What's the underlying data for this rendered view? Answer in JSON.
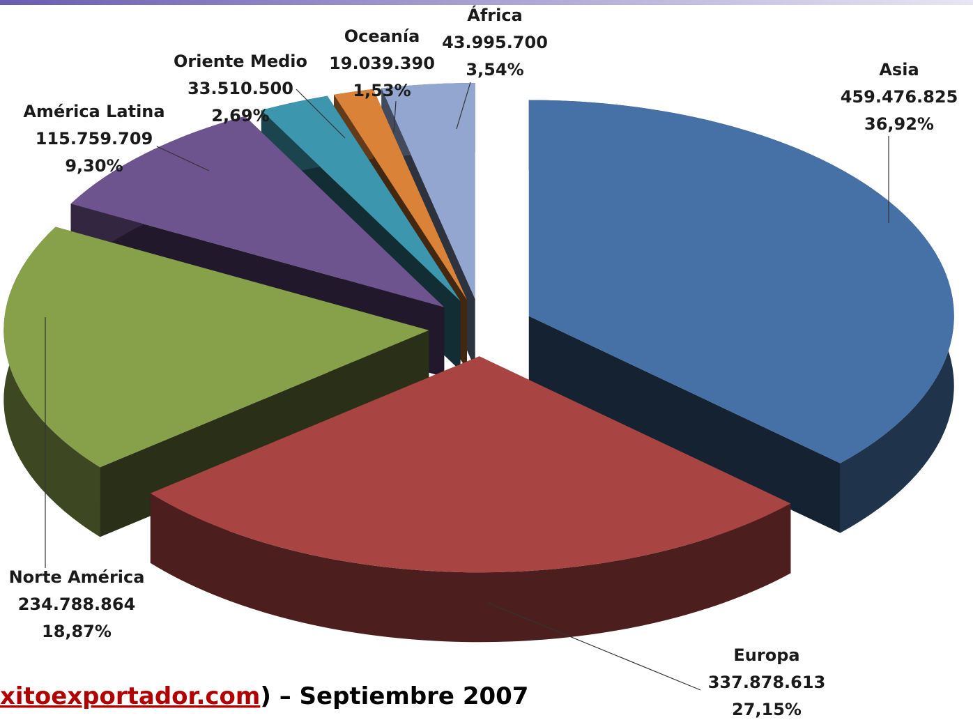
{
  "chart_data": {
    "type": "pie3d",
    "series": [
      {
        "name": "Asia",
        "values": 459476825,
        "value_label": "459.476.825",
        "percentage": 36.92,
        "percentage_label": "36,92%",
        "color": "#4571a7"
      },
      {
        "name": "Europa",
        "values": 337878613,
        "value_label": "337.878.613",
        "percentage": 27.15,
        "percentage_label": "27,15%",
        "color": "#a84542"
      },
      {
        "name": "Norte América",
        "values": 234788864,
        "value_label": "234.788.864",
        "percentage": 18.87,
        "percentage_label": "18,87%",
        "color": "#87a14b"
      },
      {
        "name": "América Latina",
        "values": 115759709,
        "value_label": "115.759.709",
        "percentage": 9.3,
        "percentage_label": "9,30%",
        "color": "#6e548e"
      },
      {
        "name": "Oriente Medio",
        "values": 33510500,
        "value_label": "33.510.500",
        "percentage": 2.69,
        "percentage_label": "2,69%",
        "color": "#3c96ad"
      },
      {
        "name": "Oceanía",
        "values": 19039390,
        "value_label": "19.039.390",
        "percentage": 1.53,
        "percentage_label": "1,53%",
        "color": "#db8239"
      },
      {
        "name": "África",
        "values": 43995700,
        "value_label": "43.995.700",
        "percentage": 3.54,
        "percentage_label": "3,54%",
        "color": "#93a6cf"
      }
    ],
    "source_link": "xitoexportador.com",
    "source_rest": ") – Septiembre 2007"
  }
}
